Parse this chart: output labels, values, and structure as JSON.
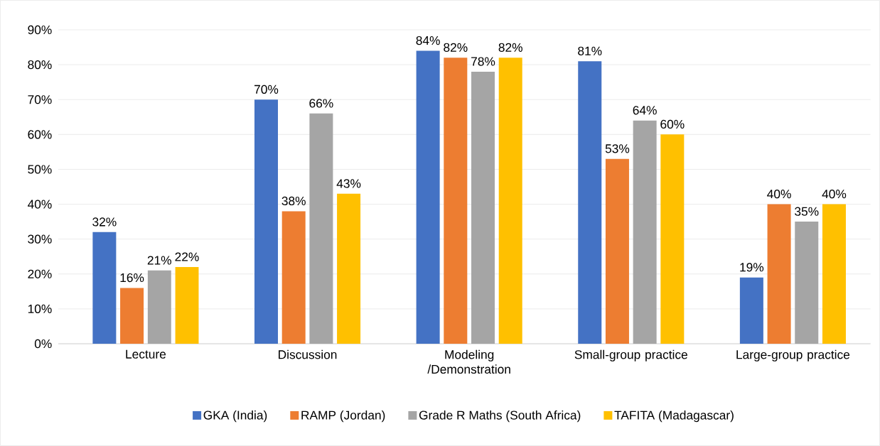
{
  "chart_data": {
    "type": "bar",
    "categories": [
      "Lecture",
      "Discussion",
      "Modeling /Demonstration",
      "Small-group practice",
      "Large-group practice"
    ],
    "series": [
      {
        "name": "GKA (India)",
        "color": "#4472c4",
        "values": [
          32,
          70,
          84,
          81,
          19
        ],
        "value_labels": [
          "32%",
          "70%",
          "84%",
          "81%",
          "19%"
        ]
      },
      {
        "name": "RAMP (Jordan)",
        "color": "#ed7d31",
        "values": [
          16,
          38,
          82,
          53,
          40
        ],
        "value_labels": [
          "16%",
          "38%",
          "82%",
          "53%",
          "40%"
        ]
      },
      {
        "name": "Grade R Maths (South Africa)",
        "color": "#a5a5a5",
        "values": [
          21,
          66,
          78,
          64,
          35
        ],
        "value_labels": [
          "21%",
          "66%",
          "78%",
          "64%",
          "35%"
        ]
      },
      {
        "name": "TAFITA (Madagascar)",
        "color": "#ffc000",
        "values": [
          22,
          43,
          82,
          60,
          40
        ],
        "value_labels": [
          "22%",
          "43%",
          "82%",
          "60%",
          "40%"
        ]
      }
    ],
    "ylim": [
      0,
      90
    ],
    "yticks": [
      {
        "value": 0,
        "label": "0%"
      },
      {
        "value": 10,
        "label": "10%"
      },
      {
        "value": 20,
        "label": "20%"
      },
      {
        "value": 30,
        "label": "30%"
      },
      {
        "value": 40,
        "label": "40%"
      },
      {
        "value": 50,
        "label": "50%"
      },
      {
        "value": 60,
        "label": "60%"
      },
      {
        "value": 70,
        "label": "70%"
      },
      {
        "value": 80,
        "label": "80%"
      },
      {
        "value": 90,
        "label": "90%"
      }
    ],
    "grid": "y",
    "legend": "bottom"
  }
}
